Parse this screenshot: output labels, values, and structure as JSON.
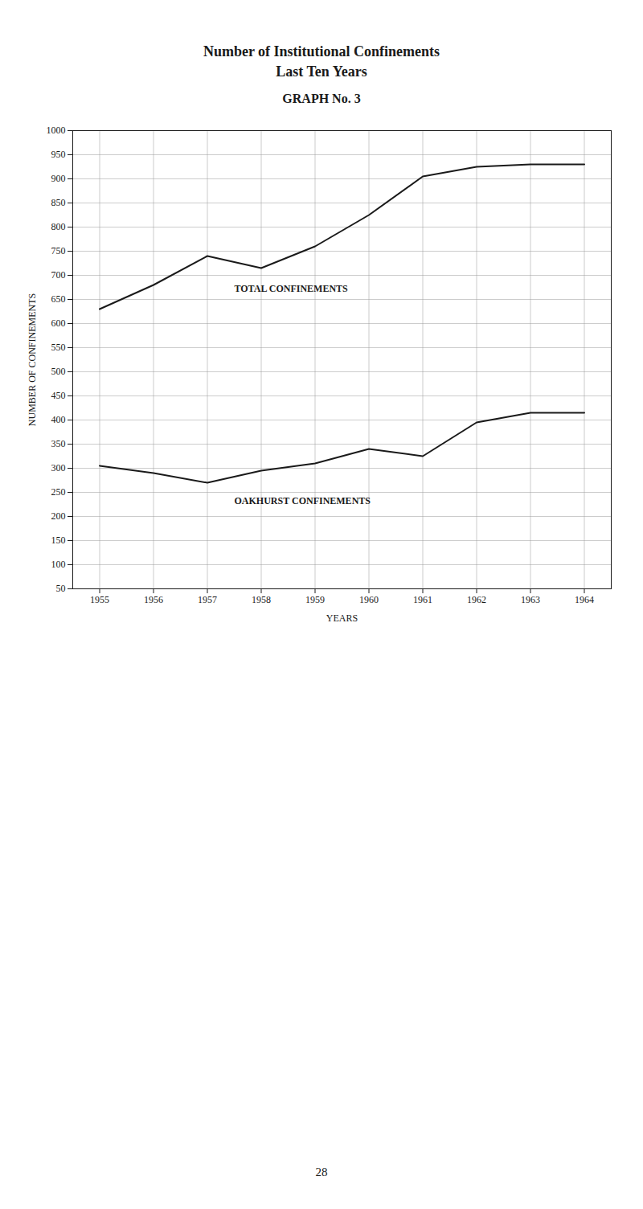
{
  "chart_data": {
    "type": "line",
    "title": [
      "Number of Institutional Confinements",
      "Last Ten Years"
    ],
    "subtitle": "GRAPH No. 3",
    "caption": "28",
    "x_label": "YEARS",
    "y_label": "NUMBER OF CONFINEMENTS",
    "x": [
      1955,
      1956,
      1957,
      1958,
      1959,
      1960,
      1961,
      1962,
      1963,
      1964
    ],
    "series": [
      {
        "name": "TOTAL CONFINEMENTS",
        "color": "#1a1a1a",
        "values": [
          630,
          680,
          740,
          715,
          760,
          825,
          905,
          925,
          930,
          930
        ]
      },
      {
        "name": "OAKHURST CONFINEMENTS",
        "color": "#1a1a1a",
        "values": [
          305,
          290,
          270,
          295,
          310,
          340,
          325,
          395,
          415,
          415
        ]
      }
    ],
    "annotations": [
      {
        "text": "TOTAL CONFINEMENTS",
        "x": 1957.5,
        "y": 672
      },
      {
        "text": "OAKHURST CONFINEMENTS",
        "x": 1957.5,
        "y": 232
      }
    ],
    "xlim": [
      1954.5,
      1964.5
    ],
    "xticks": [
      1955,
      1956,
      1957,
      1958,
      1959,
      1960,
      1961,
      1962,
      1963,
      1964
    ],
    "ylim": [
      50,
      1000
    ],
    "yticks": [
      50,
      100,
      150,
      200,
      250,
      300,
      350,
      400,
      450,
      500,
      550,
      600,
      650,
      700,
      750,
      800,
      850,
      900,
      950,
      1000
    ],
    "grid": true
  }
}
